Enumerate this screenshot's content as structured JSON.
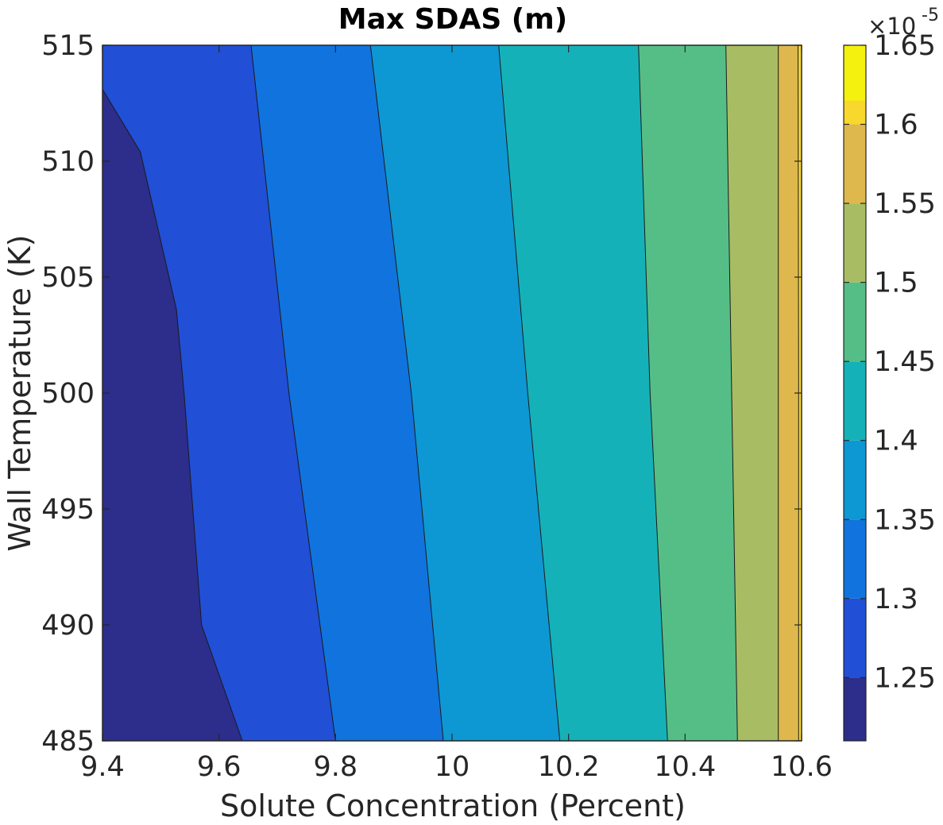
{
  "chart_data": {
    "type": "contour",
    "title": "Max SDAS (m)",
    "xlabel": "Solute Concentration (Percent)",
    "ylabel": "Wall Temperature (K)",
    "xlim": [
      9.4,
      10.6
    ],
    "ylim": [
      485,
      515
    ],
    "x_ticks": [
      "9.4",
      "9.6",
      "9.8",
      "10",
      "10.2",
      "10.4",
      "10.6"
    ],
    "x_tick_values": [
      9.4,
      9.6,
      9.8,
      10.0,
      10.2,
      10.4,
      10.6
    ],
    "y_ticks": [
      "485",
      "490",
      "495",
      "500",
      "505",
      "510",
      "515"
    ],
    "y_tick_values": [
      485,
      490,
      495,
      500,
      505,
      510,
      515
    ],
    "colorbar": {
      "exponent_label": "×10",
      "exponent_value": "-5",
      "range": [
        1.21,
        1.65
      ],
      "ticks": [
        "1.25",
        "1.3",
        "1.35",
        "1.4",
        "1.45",
        "1.5",
        "1.55",
        "1.6",
        "1.65"
      ],
      "tick_values": [
        1.25,
        1.3,
        1.35,
        1.4,
        1.45,
        1.5,
        1.55,
        1.6,
        1.65
      ],
      "colormap": "parula"
    },
    "contour_levels": [
      {
        "level": 1.25,
        "color": "#2D2D8C",
        "boundary": [
          [
            9.4,
            513.1
          ],
          [
            9.465,
            510.4
          ],
          [
            9.527,
            503.6
          ],
          [
            9.54,
            500
          ],
          [
            9.57,
            490
          ],
          [
            9.64,
            485
          ]
        ]
      },
      {
        "level": 1.3,
        "color": "#214FD6",
        "boundary": [
          [
            9.655,
            515
          ],
          [
            9.72,
            500
          ],
          [
            9.8,
            485
          ]
        ]
      },
      {
        "level": 1.35,
        "color": "#1173DE",
        "boundary": [
          [
            9.86,
            515
          ],
          [
            9.93,
            500
          ],
          [
            9.985,
            485
          ]
        ]
      },
      {
        "level": 1.4,
        "color": "#0D98D3",
        "boundary": [
          [
            10.08,
            515
          ],
          [
            10.13,
            500
          ],
          [
            10.185,
            485
          ]
        ]
      },
      {
        "level": 1.45,
        "color": "#14B2B8",
        "boundary": [
          [
            10.32,
            515
          ],
          [
            10.34,
            500
          ],
          [
            10.37,
            485
          ]
        ]
      },
      {
        "level": 1.5,
        "color": "#55BE87",
        "boundary": [
          [
            10.47,
            515
          ],
          [
            10.48,
            500
          ],
          [
            10.49,
            485
          ]
        ]
      },
      {
        "level": 1.55,
        "color": "#A8BD63",
        "boundary": [
          [
            10.56,
            515
          ],
          [
            10.56,
            500
          ],
          [
            10.56,
            485
          ]
        ]
      },
      {
        "level": 1.6,
        "color": "#DEB84C",
        "boundary": [
          [
            10.594,
            515
          ],
          [
            10.595,
            500
          ],
          [
            10.595,
            485
          ]
        ]
      },
      {
        "level": 1.65,
        "color": "#F9D82E",
        "boundary": [
          [
            10.6,
            515
          ],
          [
            10.6,
            500
          ],
          [
            10.6,
            485
          ]
        ]
      }
    ],
    "highest_region_color": "#F5F10E",
    "lowest_region_color": "#2D2D8C",
    "grid": false
  }
}
